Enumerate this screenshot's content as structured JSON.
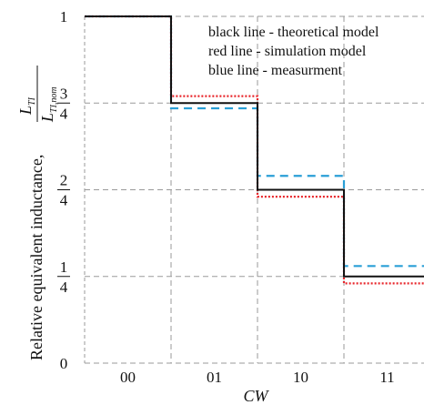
{
  "chart_data": {
    "type": "line",
    "xlabel": "CW",
    "ylabel_prefix": "Relative equivalent inductance,",
    "ylabel_fraction": {
      "numerator": {
        "symbol": "L",
        "subscript": "TI"
      },
      "denominator": {
        "symbol": "L",
        "subscript": "TI,nom"
      }
    },
    "categories": [
      "00",
      "01",
      "10",
      "11"
    ],
    "xlim": [
      0,
      4
    ],
    "ylim": [
      0,
      1
    ],
    "y_ticks": [
      {
        "value": 0,
        "label": "0"
      },
      {
        "value": 0.25,
        "numerator": "1",
        "denominator": "4"
      },
      {
        "value": 0.5,
        "numerator": "2",
        "denominator": "4"
      },
      {
        "value": 0.75,
        "numerator": "3",
        "denominator": "4"
      },
      {
        "value": 1,
        "label": "1"
      }
    ],
    "grid": true,
    "legend_placement": "top-right",
    "legend": [
      "black line - theoretical model",
      "red line - simulation model",
      "blue line - measurment"
    ],
    "series": [
      {
        "name": "theoretical model",
        "color": "#111111",
        "style": "solid",
        "values": [
          1.0,
          0.75,
          0.5,
          0.25
        ]
      },
      {
        "name": "simulation model",
        "color": "#e8262b",
        "style": "dotted",
        "values": [
          1.0,
          0.77,
          0.48,
          0.23
        ]
      },
      {
        "name": "measurment",
        "color": "#2a9fd6",
        "style": "dashed",
        "values": [
          1.0,
          0.735,
          0.54,
          0.28
        ]
      }
    ]
  }
}
